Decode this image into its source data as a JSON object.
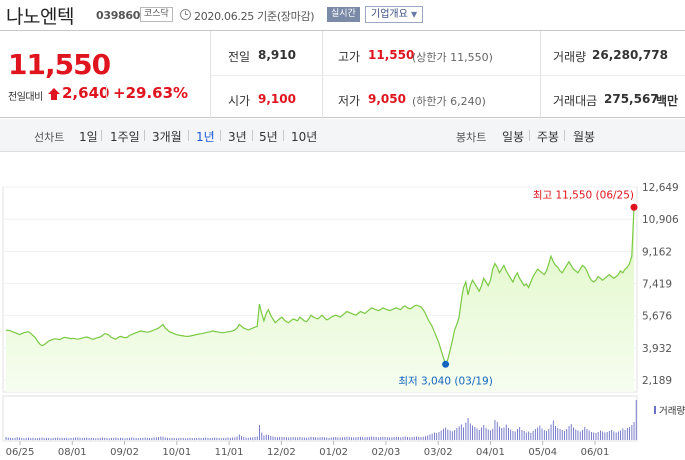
{
  "header": {
    "name": "나노엔텍",
    "code": "039860",
    "market": "코스닥",
    "as_of": "2020.06.25 기준(장마감)",
    "realtime_label": "실시간",
    "corp_info_label": "기업개요"
  },
  "summary": {
    "price": "11,550",
    "change_label": "전일대비",
    "change_abs": "2,640",
    "change_pct": "+29.63%",
    "prev_close_label": "전일",
    "prev_close": "8,910",
    "open_label": "시가",
    "open": "9,100",
    "high_label": "고가",
    "high": "11,550",
    "high_sub": "(상한가 11,550)",
    "low_label": "저가",
    "low": "9,050",
    "low_sub": "(하한가 6,240)",
    "volume_label": "거래량",
    "volume": "26,280,778",
    "amount_label": "거래대금",
    "amount": "275,567",
    "amount_unit": "백만"
  },
  "periods": {
    "line_label": "선차트",
    "line": [
      "1일",
      "1주일",
      "3개월",
      "1년",
      "3년",
      "5년",
      "10년"
    ],
    "active": "1년",
    "candle_label": "봉차트",
    "candle": [
      "일봉",
      "주봉",
      "월봉"
    ]
  },
  "colors": {
    "up": "#e0141e",
    "line": "#7ac943",
    "fill_top": "#dff7c4",
    "fill_bottom": "#f6fdf0",
    "high_dot": "#e0141e",
    "low_dot": "#1565c0",
    "volume_bar": "#6b6fc6"
  },
  "chart_data": {
    "type": "area",
    "ylim": [
      2189,
      12649
    ],
    "y_ticks": [
      "12,649",
      "10,906",
      "9,162",
      "7,419",
      "5,676",
      "3,932",
      "2,189"
    ],
    "x_tick_labels": [
      "06/25",
      "08/01",
      "09/02",
      "10/01",
      "11/01",
      "12/02",
      "01/02",
      "02/03",
      "03/02",
      "04/01",
      "05/04",
      "06/01"
    ],
    "max_label": "최고 11,550 (06/25)",
    "min_label": "최저 3,040 (03/19)",
    "volume_label": "거래량",
    "series": [
      {
        "values": [
          4900,
          4880,
          4850,
          4800,
          4760,
          4700,
          4650,
          4700,
          4750,
          4780,
          4800,
          4720,
          4600,
          4500,
          4300,
          4150,
          4050,
          4100,
          4200,
          4300,
          4350,
          4400,
          4420,
          4400,
          4380,
          4450,
          4500,
          4480,
          4460,
          4430,
          4450,
          4420,
          4400,
          4430,
          4460,
          4500,
          4520,
          4480,
          4420,
          4400,
          4450,
          4500,
          4520,
          4600,
          4700,
          4680,
          4600,
          4500,
          4450,
          4400,
          4500,
          4550,
          4520,
          4480,
          4500,
          4600,
          4650,
          4700,
          4750,
          4800,
          4850,
          4820,
          4800,
          4780,
          4800,
          4850,
          4900,
          4950,
          5000,
          5100,
          5200,
          5000,
          4900,
          4800,
          4750,
          4700,
          4650,
          4620,
          4600,
          4580,
          4560,
          4550,
          4570,
          4600,
          4620,
          4650,
          4680,
          4700,
          4720,
          4750,
          4780,
          4800,
          4850,
          4820,
          4800,
          4780,
          4760,
          4750,
          4780,
          4800,
          4820,
          4850,
          4900,
          5000,
          5200,
          5100,
          5000,
          4950,
          4900,
          4950,
          5000,
          5050,
          5100,
          6300,
          5800,
          5400,
          5800,
          6000,
          5700,
          5500,
          5300,
          5400,
          5500,
          5600,
          5450,
          5350,
          5300,
          5400,
          5500,
          5450,
          5400,
          5600,
          5500,
          5400,
          5350,
          5500,
          5700,
          5600,
          5550,
          5500,
          5600,
          5700,
          5550,
          5450,
          5500,
          5600,
          5650,
          5700,
          5650,
          5600,
          5700,
          5800,
          5900,
          5850,
          5800,
          5750,
          5700,
          5800,
          5900,
          5850,
          5800,
          5900,
          6000,
          6100,
          6050,
          6000,
          5950,
          6000,
          6100,
          6050,
          6000,
          5950,
          6000,
          6050,
          6100,
          6050,
          6000,
          6150,
          6200,
          6100,
          6050,
          6100,
          6200,
          6250,
          6200,
          6150,
          6000,
          5800,
          5500,
          5300,
          5100,
          4800,
          4500,
          4200,
          3800,
          3400,
          3040,
          3300,
          3800,
          4300,
          4900,
          5200,
          5600,
          6500,
          7200,
          7500,
          6800,
          7300,
          7600,
          7400,
          7200,
          7000,
          7300,
          7700,
          7500,
          7300,
          7600,
          8200,
          8500,
          8300,
          8000,
          8200,
          8400,
          8100,
          7900,
          7700,
          7500,
          7800,
          8000,
          7700,
          7500,
          7300,
          7400,
          7200,
          7500,
          7800,
          8000,
          8200,
          8100,
          8000,
          7900,
          8100,
          8500,
          8900,
          8600,
          8400,
          8300,
          8100,
          8000,
          8200,
          8400,
          8600,
          8400,
          8200,
          8100,
          8000,
          8200,
          8400,
          8300,
          8100,
          7800,
          7600,
          7500,
          7600,
          7800,
          7700,
          7600,
          7700,
          7800,
          7900,
          7800,
          7700,
          7800,
          7900,
          8100,
          8000,
          8200,
          8300,
          8500,
          8910,
          11550
        ]
      }
    ],
    "volume": [
      12,
      10,
      9,
      8,
      9,
      11,
      10,
      8,
      7,
      9,
      10,
      8,
      9,
      8,
      7,
      9,
      10,
      8,
      9,
      8,
      7,
      8,
      9,
      10,
      8,
      9,
      8,
      9,
      7,
      8,
      9,
      10,
      11,
      9,
      8,
      9,
      10,
      8,
      9,
      8,
      7,
      8,
      9,
      10,
      9,
      8,
      7,
      8,
      9,
      10,
      8,
      9,
      8,
      7,
      8,
      9,
      10,
      9,
      8,
      7,
      8,
      9,
      10,
      9,
      8,
      9,
      10,
      11,
      12,
      14,
      13,
      10,
      9,
      8,
      9,
      8,
      7,
      8,
      9,
      8,
      7,
      8,
      9,
      8,
      7,
      8,
      9,
      8,
      9,
      10,
      9,
      8,
      9,
      10,
      9,
      8,
      7,
      8,
      9,
      10,
      9,
      10,
      11,
      14,
      22,
      16,
      12,
      10,
      9,
      10,
      11,
      12,
      14,
      60,
      30,
      18,
      22,
      20,
      16,
      14,
      12,
      11,
      12,
      13,
      12,
      11,
      10,
      11,
      12,
      11,
      10,
      12,
      11,
      10,
      9,
      11,
      13,
      12,
      11,
      10,
      11,
      12,
      11,
      10,
      9,
      10,
      11,
      12,
      11,
      10,
      11,
      12,
      13,
      12,
      11,
      10,
      11,
      12,
      13,
      12,
      11,
      12,
      13,
      14,
      13,
      12,
      11,
      12,
      13,
      12,
      11,
      10,
      11,
      12,
      13,
      12,
      11,
      13,
      14,
      12,
      11,
      12,
      13,
      14,
      13,
      12,
      13,
      15,
      18,
      22,
      26,
      30,
      28,
      32,
      38,
      45,
      50,
      42,
      38,
      35,
      40,
      48,
      55,
      62,
      50,
      70,
      88,
      66,
      58,
      52,
      46,
      40,
      50,
      60,
      48,
      42,
      38,
      45,
      80,
      72,
      54,
      48,
      50,
      62,
      48,
      42,
      36,
      34,
      44,
      52,
      40,
      36,
      30,
      34,
      28,
      36,
      44,
      50,
      58,
      46,
      40,
      36,
      44,
      62,
      78,
      56,
      48,
      44,
      40,
      36,
      44,
      56,
      64,
      50,
      42,
      38,
      34,
      40,
      52,
      44,
      38,
      32,
      30,
      28,
      32,
      38,
      34,
      30,
      32,
      36,
      40,
      34,
      30,
      34,
      38,
      46,
      40,
      48,
      52,
      60,
      72,
      160
    ]
  }
}
